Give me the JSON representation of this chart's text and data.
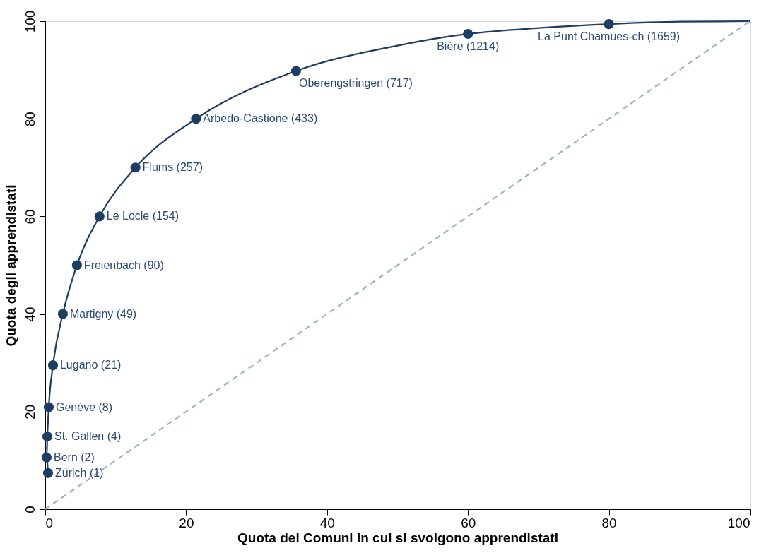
{
  "chart_data": {
    "type": "line",
    "xlabel": "Quota dei Comuni in cui si svolgono apprendistati",
    "ylabel": "Quota degli apprendistati",
    "xlim": [
      0,
      100
    ],
    "ylim": [
      0,
      100
    ],
    "xticks": [
      0,
      20,
      40,
      60,
      80,
      100
    ],
    "yticks": [
      0,
      20,
      40,
      60,
      80,
      100
    ],
    "grid": false,
    "series": [
      {
        "type": "line",
        "color": "#1e3d63",
        "marker": "none",
        "line_style": "solid",
        "x": [
          0.4,
          0.2,
          0.3,
          0.5,
          1.1,
          2.5,
          4.5,
          7.7,
          12.8,
          21.4,
          35.6,
          50,
          60,
          70,
          80,
          90,
          100
        ],
        "values": [
          7.4,
          10.6,
          14.9,
          20.9,
          29.5,
          40,
          50,
          60,
          70,
          80,
          89.8,
          95,
          97.4,
          98.6,
          99.4,
          99.9,
          100
        ]
      },
      {
        "type": "scatter",
        "color": "#1e3d63",
        "marker": "circle",
        "x": [
          0.4,
          0.2,
          0.3,
          0.5,
          1.1,
          2.5,
          4.5,
          7.7,
          12.8,
          21.4,
          35.6,
          60,
          80
        ],
        "values": [
          7.4,
          10.6,
          14.9,
          20.9,
          29.5,
          40,
          50,
          60,
          70,
          80,
          89.8,
          97.4,
          99.4
        ]
      },
      {
        "type": "line",
        "color": "#9fb1c9",
        "marker": "none",
        "line_style": "dashed",
        "x": [
          0,
          100
        ],
        "values": [
          0,
          100
        ]
      }
    ],
    "annotations": [
      {
        "text": "Zürich (1)",
        "x": 0.4,
        "y": 7.4
      },
      {
        "text": "Bern (2)",
        "x": 0.2,
        "y": 10.6
      },
      {
        "text": "St. Gallen (4)",
        "x": 0.3,
        "y": 14.9
      },
      {
        "text": "Genève (8)",
        "x": 0.5,
        "y": 20.9
      },
      {
        "text": "Lugano (21)",
        "x": 1.1,
        "y": 29.5
      },
      {
        "text": "Martigny (49)",
        "x": 2.5,
        "y": 40
      },
      {
        "text": "Freienbach (90)",
        "x": 4.5,
        "y": 50
      },
      {
        "text": "Le Locle (154)",
        "x": 7.7,
        "y": 60
      },
      {
        "text": "Flums (257)",
        "x": 12.8,
        "y": 70
      },
      {
        "text": "Arbedo-Castione (433)",
        "x": 21.4,
        "y": 80
      },
      {
        "text": "Oberengstringen (717)",
        "x": 35.6,
        "y": 89.8
      },
      {
        "text": "Bière (1214)",
        "x": 60,
        "y": 97.4
      },
      {
        "text": "La Punt Chamues-ch (1659)",
        "x": 80,
        "y": 99.4
      }
    ]
  }
}
